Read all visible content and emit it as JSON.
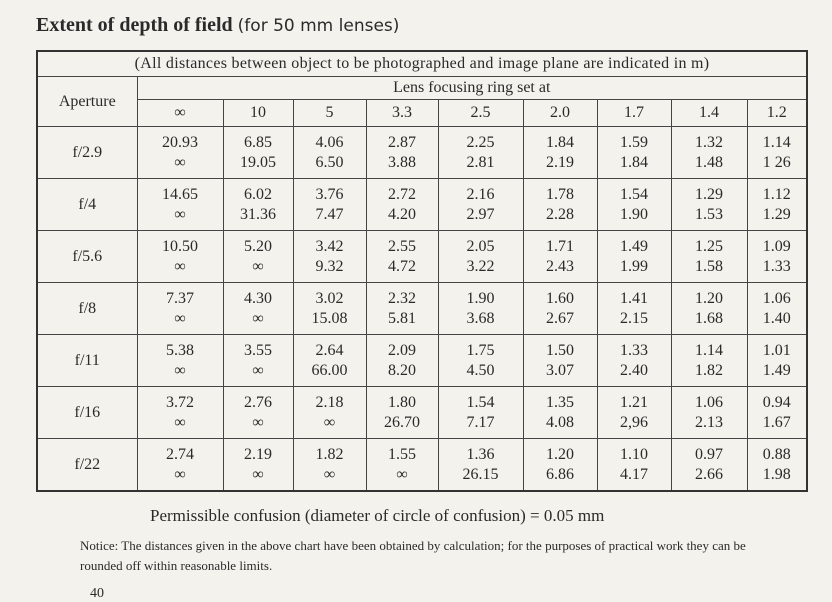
{
  "header": {
    "title": "Extent of depth of field",
    "subtitle": "(for 50 mm lenses)"
  },
  "table": {
    "note": "(All distances between object to be photographed and image plane are indicated in m)",
    "row_header": "Aperture",
    "group_header": "Lens focusing ring set at",
    "columns": [
      "∞",
      "10",
      "5",
      "3.3",
      "2.5",
      "2.0",
      "1.7",
      "1.4",
      "1.2"
    ],
    "rows": [
      {
        "aperture": "f/2.9",
        "cells": [
          [
            "20.93",
            "∞"
          ],
          [
            "6.85",
            "19.05"
          ],
          [
            "4.06",
            "6.50"
          ],
          [
            "2.87",
            "3.88"
          ],
          [
            "2.25",
            "2.81"
          ],
          [
            "1.84",
            "2.19"
          ],
          [
            "1.59",
            "1.84"
          ],
          [
            "1.32",
            "1.48"
          ],
          [
            "1.14",
            "1 26"
          ]
        ]
      },
      {
        "aperture": "f/4",
        "cells": [
          [
            "14.65",
            "∞"
          ],
          [
            "6.02",
            "31.36"
          ],
          [
            "3.76",
            "7.47"
          ],
          [
            "2.72",
            "4.20"
          ],
          [
            "2.16",
            "2.97"
          ],
          [
            "1.78",
            "2.28"
          ],
          [
            "1.54",
            "1.90"
          ],
          [
            "1.29",
            "1.53"
          ],
          [
            "1.12",
            "1.29"
          ]
        ]
      },
      {
        "aperture": "f/5.6",
        "cells": [
          [
            "10.50",
            "∞"
          ],
          [
            "5.20",
            "∞"
          ],
          [
            "3.42",
            "9.32"
          ],
          [
            "2.55",
            "4.72"
          ],
          [
            "2.05",
            "3.22"
          ],
          [
            "1.71",
            "2.43"
          ],
          [
            "1.49",
            "1.99"
          ],
          [
            "1.25",
            "1.58"
          ],
          [
            "1.09",
            "1.33"
          ]
        ]
      },
      {
        "aperture": "f/8",
        "cells": [
          [
            "7.37",
            "∞"
          ],
          [
            "4.30",
            "∞"
          ],
          [
            "3.02",
            "15.08"
          ],
          [
            "2.32",
            "5.81"
          ],
          [
            "1.90",
            "3.68"
          ],
          [
            "1.60",
            "2.67"
          ],
          [
            "1.41",
            "2.15"
          ],
          [
            "1.20",
            "1.68"
          ],
          [
            "1.06",
            "1.40"
          ]
        ]
      },
      {
        "aperture": "f/11",
        "cells": [
          [
            "5.38",
            "∞"
          ],
          [
            "3.55",
            "∞"
          ],
          [
            "2.64",
            "66.00"
          ],
          [
            "2.09",
            "8.20"
          ],
          [
            "1.75",
            "4.50"
          ],
          [
            "1.50",
            "3.07"
          ],
          [
            "1.33",
            "2.40"
          ],
          [
            "1.14",
            "1.82"
          ],
          [
            "1.01",
            "1.49"
          ]
        ]
      },
      {
        "aperture": "f/16",
        "cells": [
          [
            "3.72",
            "∞"
          ],
          [
            "2.76",
            "∞"
          ],
          [
            "2.18",
            "∞"
          ],
          [
            "1.80",
            "26.70"
          ],
          [
            "1.54",
            "7.17"
          ],
          [
            "1.35",
            "4.08"
          ],
          [
            "1.21",
            "2,96"
          ],
          [
            "1.06",
            "2.13"
          ],
          [
            "0.94",
            "1.67"
          ]
        ]
      },
      {
        "aperture": "f/22",
        "cells": [
          [
            "2.74",
            "∞"
          ],
          [
            "2.19",
            "∞"
          ],
          [
            "1.82",
            "∞"
          ],
          [
            "1.55",
            "∞"
          ],
          [
            "1.36",
            "26.15"
          ],
          [
            "1.20",
            "6.86"
          ],
          [
            "1.10",
            "4.17"
          ],
          [
            "0.97",
            "2.66"
          ],
          [
            "0.88",
            "1.98"
          ]
        ]
      }
    ]
  },
  "footer": {
    "confusion": "Permissible confusion (diameter of circle of confusion) = 0.05 mm",
    "notice_label": "Notice:",
    "notice": "The distances given in the above chart have been obtained by calculation; for the purposes of practical work they can be rounded off within reasonable limits.",
    "page_number": "40"
  }
}
